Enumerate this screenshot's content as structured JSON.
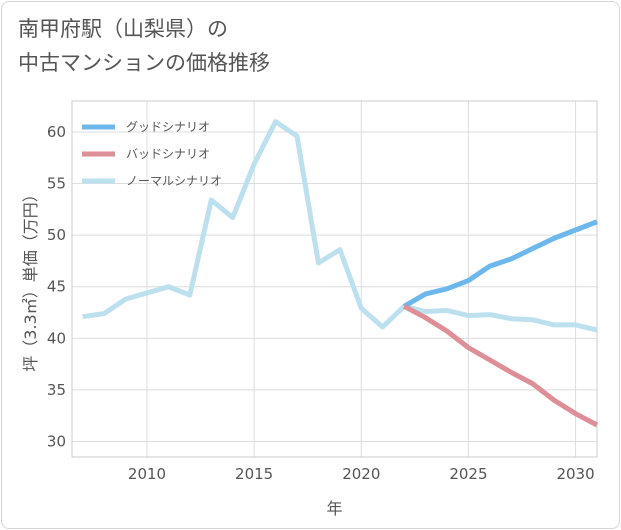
{
  "chart_data": {
    "type": "line",
    "title": [
      "南甲府駅（山梨県）の",
      "中古マンションの価格推移"
    ],
    "xlabel": "年",
    "ylabel": "坪（3.3㎡）単価（万円）",
    "xlim": [
      2006.5,
      2031
    ],
    "ylim": [
      28.5,
      63
    ],
    "x_ticks": [
      2010,
      2015,
      2020,
      2025,
      2030
    ],
    "y_ticks": [
      30,
      35,
      40,
      45,
      50,
      55,
      60
    ],
    "grid": true,
    "legend_position": "top-left",
    "series": [
      {
        "name": "グッドシナリオ",
        "color": "#6cb8ec",
        "x": [
          2022,
          2023,
          2024,
          2025,
          2026,
          2027,
          2028,
          2029,
          2030,
          2031
        ],
        "values": [
          43.1,
          44.3,
          44.8,
          45.6,
          47.0,
          47.7,
          48.7,
          49.7,
          50.5,
          51.3
        ]
      },
      {
        "name": "バッドシナリオ",
        "color": "#de8e96",
        "x": [
          2022,
          2023,
          2024,
          2025,
          2026,
          2027,
          2028,
          2029,
          2030,
          2031
        ],
        "values": [
          43.1,
          42.0,
          40.7,
          39.1,
          37.9,
          36.7,
          35.6,
          34.0,
          32.7,
          31.6
        ]
      },
      {
        "name": "ノーマルシナリオ",
        "color": "#bde0ee",
        "x": [
          2007,
          2008,
          2009,
          2010,
          2011,
          2012,
          2013,
          2014,
          2015,
          2016,
          2017,
          2018,
          2019,
          2020,
          2021,
          2022,
          2023,
          2024,
          2025,
          2026,
          2027,
          2028,
          2029,
          2030,
          2031
        ],
        "values": [
          42.1,
          42.4,
          43.8,
          44.4,
          45.0,
          44.2,
          53.4,
          51.7,
          56.9,
          61.0,
          59.6,
          47.3,
          48.6,
          42.9,
          41.1,
          43.1,
          42.6,
          42.7,
          42.2,
          42.3,
          41.9,
          41.8,
          41.3,
          41.3,
          40.8
        ]
      }
    ]
  }
}
